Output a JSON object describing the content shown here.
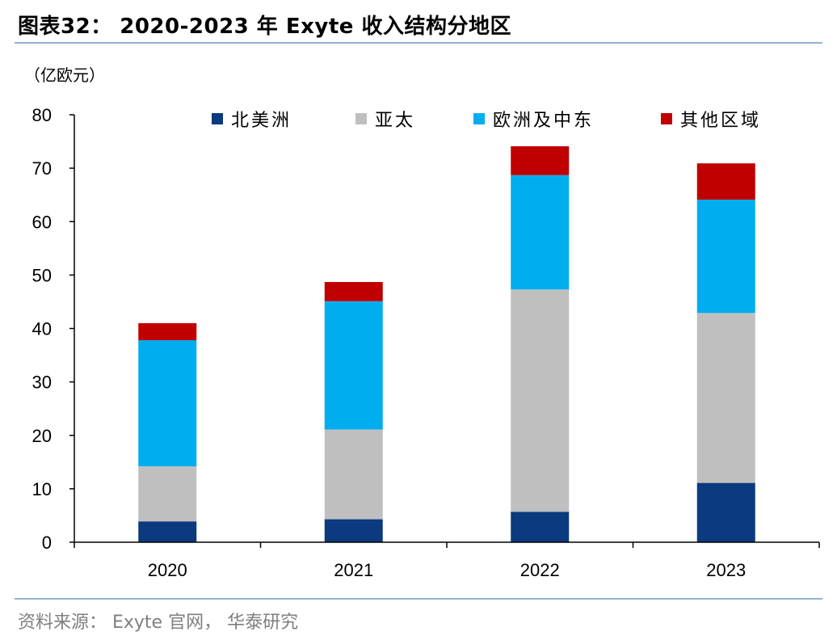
{
  "title": "图表32： 2020-2023 年 Exyte 收入结构分地区",
  "source": "资料来源： Exyte 官网， 华泰研究",
  "colors": {
    "north_america": "#0b3a7e",
    "apac": "#bfbfbf",
    "europe_me": "#00aeef",
    "other": "#c00000",
    "rule": "#8eb4d6"
  },
  "chart_data": {
    "type": "bar",
    "stacked": true,
    "title": "2020-2023 年 Exyte 收入结构分地区",
    "ylabel": "（亿欧元）",
    "xlabel": "",
    "ylim": [
      0,
      80
    ],
    "yticks": [
      0,
      10,
      20,
      30,
      40,
      50,
      60,
      70,
      80
    ],
    "categories": [
      "2020",
      "2021",
      "2022",
      "2023"
    ],
    "legend_position": "top",
    "series": [
      {
        "name": "北美洲",
        "color": "#0b3a7e",
        "values": [
          3.9,
          4.3,
          5.7,
          11.1
        ]
      },
      {
        "name": "亚太",
        "color": "#bfbfbf",
        "values": [
          10.3,
          16.8,
          41.6,
          31.8
        ]
      },
      {
        "name": "欧洲及中东",
        "color": "#00aeef",
        "values": [
          23.6,
          24.0,
          21.4,
          21.2
        ]
      },
      {
        "name": "其他区域",
        "color": "#c00000",
        "values": [
          3.2,
          3.6,
          5.4,
          6.8
        ]
      }
    ]
  }
}
